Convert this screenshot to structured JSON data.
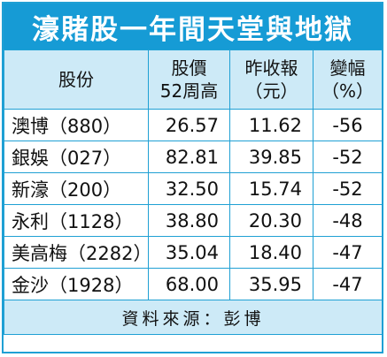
{
  "title": "濠賭股一年間天堂與地獄",
  "headers": [
    {
      "line1": "股份",
      "line2": ""
    },
    {
      "line1": "股價",
      "line2": "52周高"
    },
    {
      "line1": "昨收報",
      "line2": "（元）"
    },
    {
      "line1": "變幅",
      "line2": "（%）"
    }
  ],
  "rows": [
    {
      "name": "澳博（880）",
      "high": "26.57",
      "close": "11.62",
      "change": "-56"
    },
    {
      "name": "銀娛（027）",
      "high": "82.81",
      "close": "39.85",
      "change": "-52"
    },
    {
      "name": "新濠（200）",
      "high": "32.50",
      "close": "15.74",
      "change": "-52"
    },
    {
      "name": "永利（1128）",
      "high": "38.80",
      "close": "20.30",
      "change": "-48"
    },
    {
      "name": "美高梅（2282）",
      "high": "35.04",
      "close": "18.40",
      "change": "-47"
    },
    {
      "name": "金沙（1928）",
      "high": "68.00",
      "close": "35.95",
      "change": "-47"
    }
  ],
  "source": "資料來源：彭博",
  "colors": {
    "title_bg": "#169bd5",
    "header_bg": "#cdeaf7",
    "border": "#1fa0d4"
  }
}
